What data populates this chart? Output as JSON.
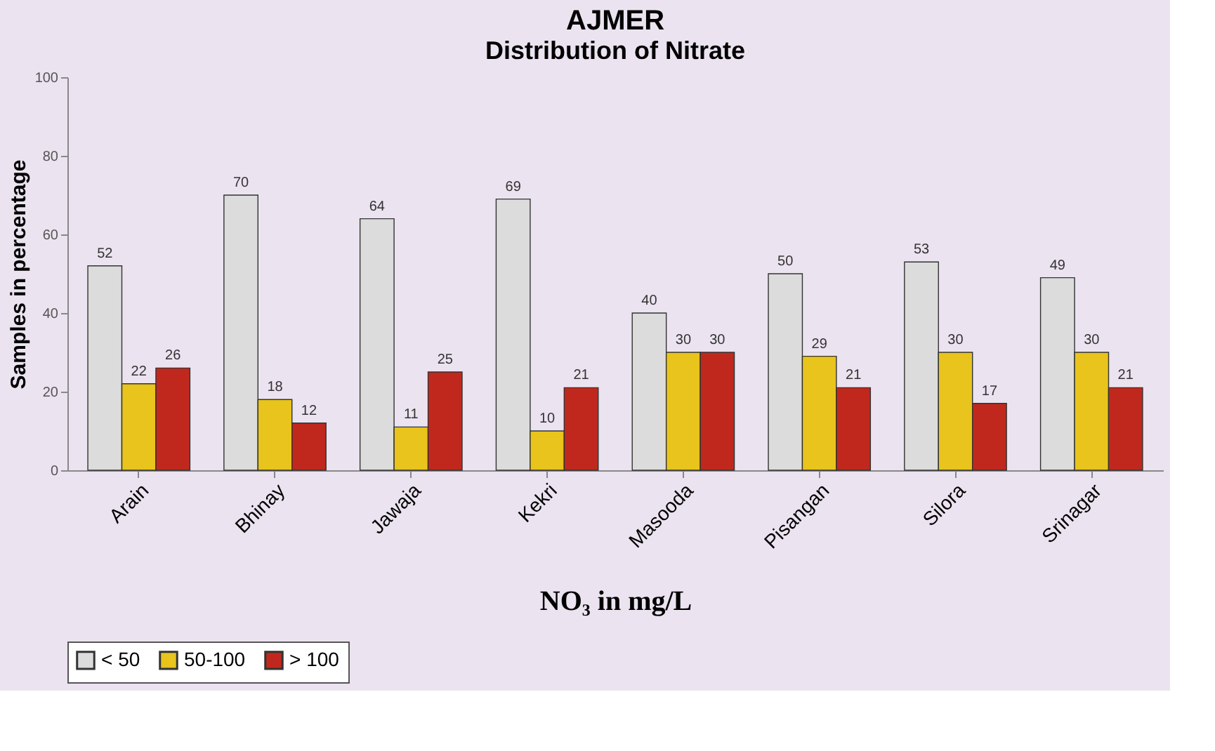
{
  "chart_data": {
    "type": "bar",
    "title": "AJMER",
    "subtitle": "Distribution of Nitrate",
    "xlabel": "NO₃ in mg/L",
    "ylabel": "Samples in percentage",
    "categories": [
      "Arain",
      "Bhinay",
      "Jawaja",
      "Kekri",
      "Masooda",
      "Pisangan",
      "Silora",
      "Srinagar"
    ],
    "series": [
      {
        "name": "< 50",
        "color": "#dcdcdc",
        "values": [
          52,
          70,
          64,
          69,
          40,
          50,
          53,
          49
        ]
      },
      {
        "name": "50-100",
        "color": "#e8c41c",
        "values": [
          22,
          18,
          11,
          10,
          30,
          29,
          30,
          30
        ]
      },
      {
        "name": "> 100",
        "color": "#c0281e",
        "values": [
          26,
          12,
          25,
          21,
          30,
          21,
          17,
          21
        ]
      }
    ],
    "ylim": [
      0,
      100
    ],
    "yticks": [
      0,
      20,
      40,
      60,
      80,
      100
    ],
    "grid": false,
    "legend": "bottom",
    "data_labels": true
  }
}
